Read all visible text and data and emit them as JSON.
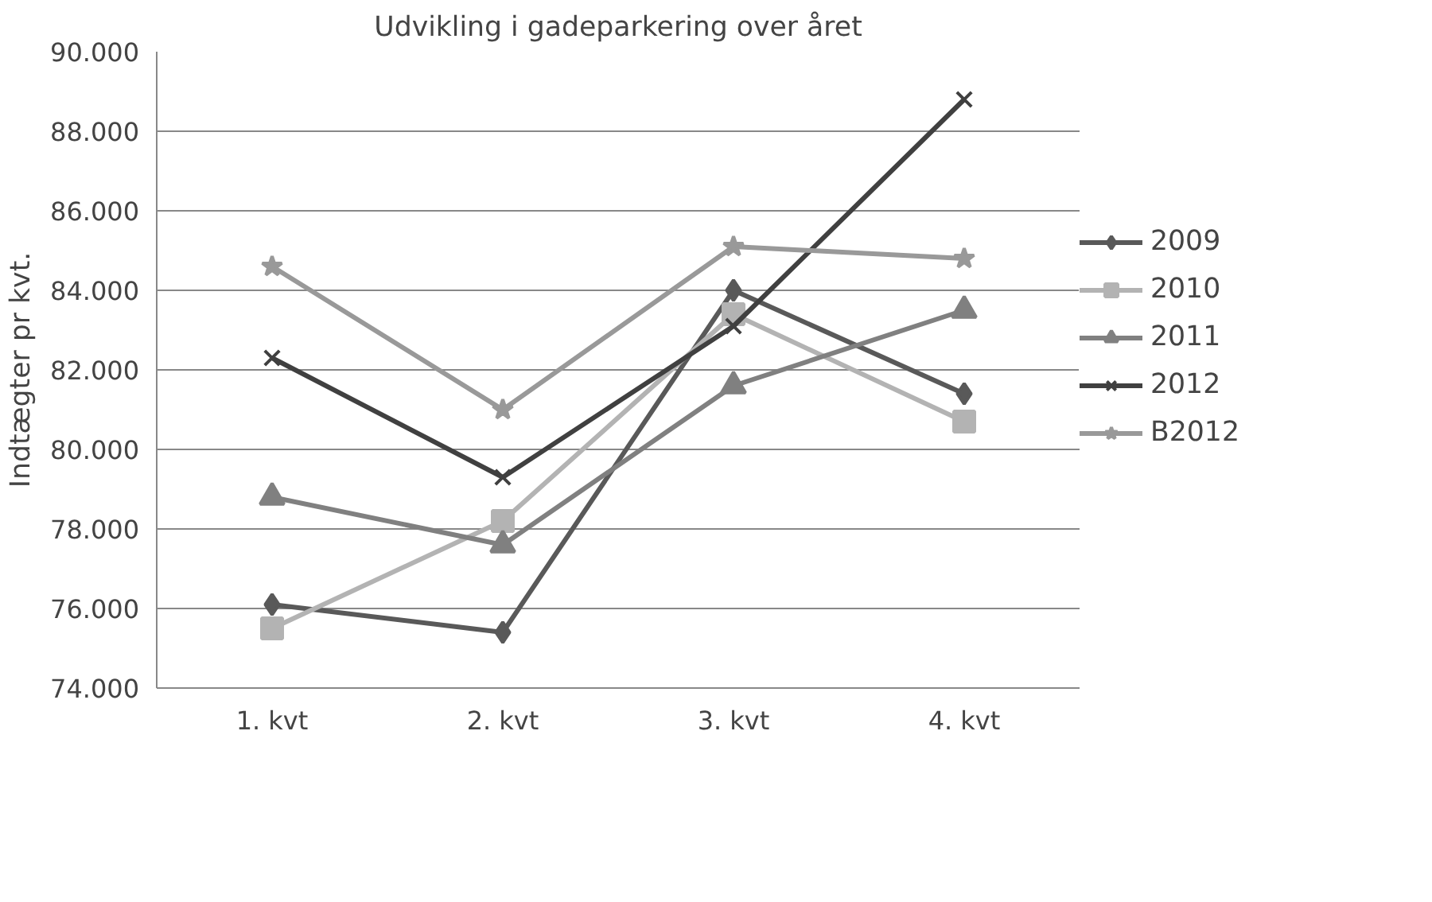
{
  "chart_data": {
    "type": "line",
    "title": "Udvikling i gadeparkering over året",
    "ylabel": "Indtægter pr kvt.",
    "categories": [
      "1. kvt",
      "2. kvt",
      "3. kvt",
      "4. kvt"
    ],
    "series": [
      {
        "name": "2009",
        "color": "#595959",
        "marker": "diamond",
        "values": [
          76100,
          75400,
          84000,
          81400
        ]
      },
      {
        "name": "2010",
        "color": "#b3b3b3",
        "marker": "square",
        "values": [
          75500,
          78200,
          83400,
          80700
        ]
      },
      {
        "name": "2011",
        "color": "#808080",
        "marker": "triangle",
        "values": [
          78800,
          77600,
          81600,
          83500
        ]
      },
      {
        "name": "2012",
        "color": "#404040",
        "marker": "cross",
        "values": [
          82300,
          79300,
          83100,
          88800
        ]
      },
      {
        "name": "B2012",
        "color": "#999999",
        "marker": "star",
        "values": [
          84600,
          81000,
          85100,
          84800
        ]
      }
    ],
    "ylim": [
      74000,
      90000
    ],
    "yticks": [
      {
        "value": 74000,
        "label": "74.000"
      },
      {
        "value": 76000,
        "label": "76.000"
      },
      {
        "value": 78000,
        "label": "78.000"
      },
      {
        "value": 80000,
        "label": "80.000"
      },
      {
        "value": 82000,
        "label": "82.000"
      },
      {
        "value": 84000,
        "label": "84.000"
      },
      {
        "value": 86000,
        "label": "86.000"
      },
      {
        "value": 88000,
        "label": "88.000"
      },
      {
        "value": 90000,
        "label": "90.000"
      }
    ],
    "grid": "y",
    "legend": "right",
    "line_style": "solid"
  }
}
